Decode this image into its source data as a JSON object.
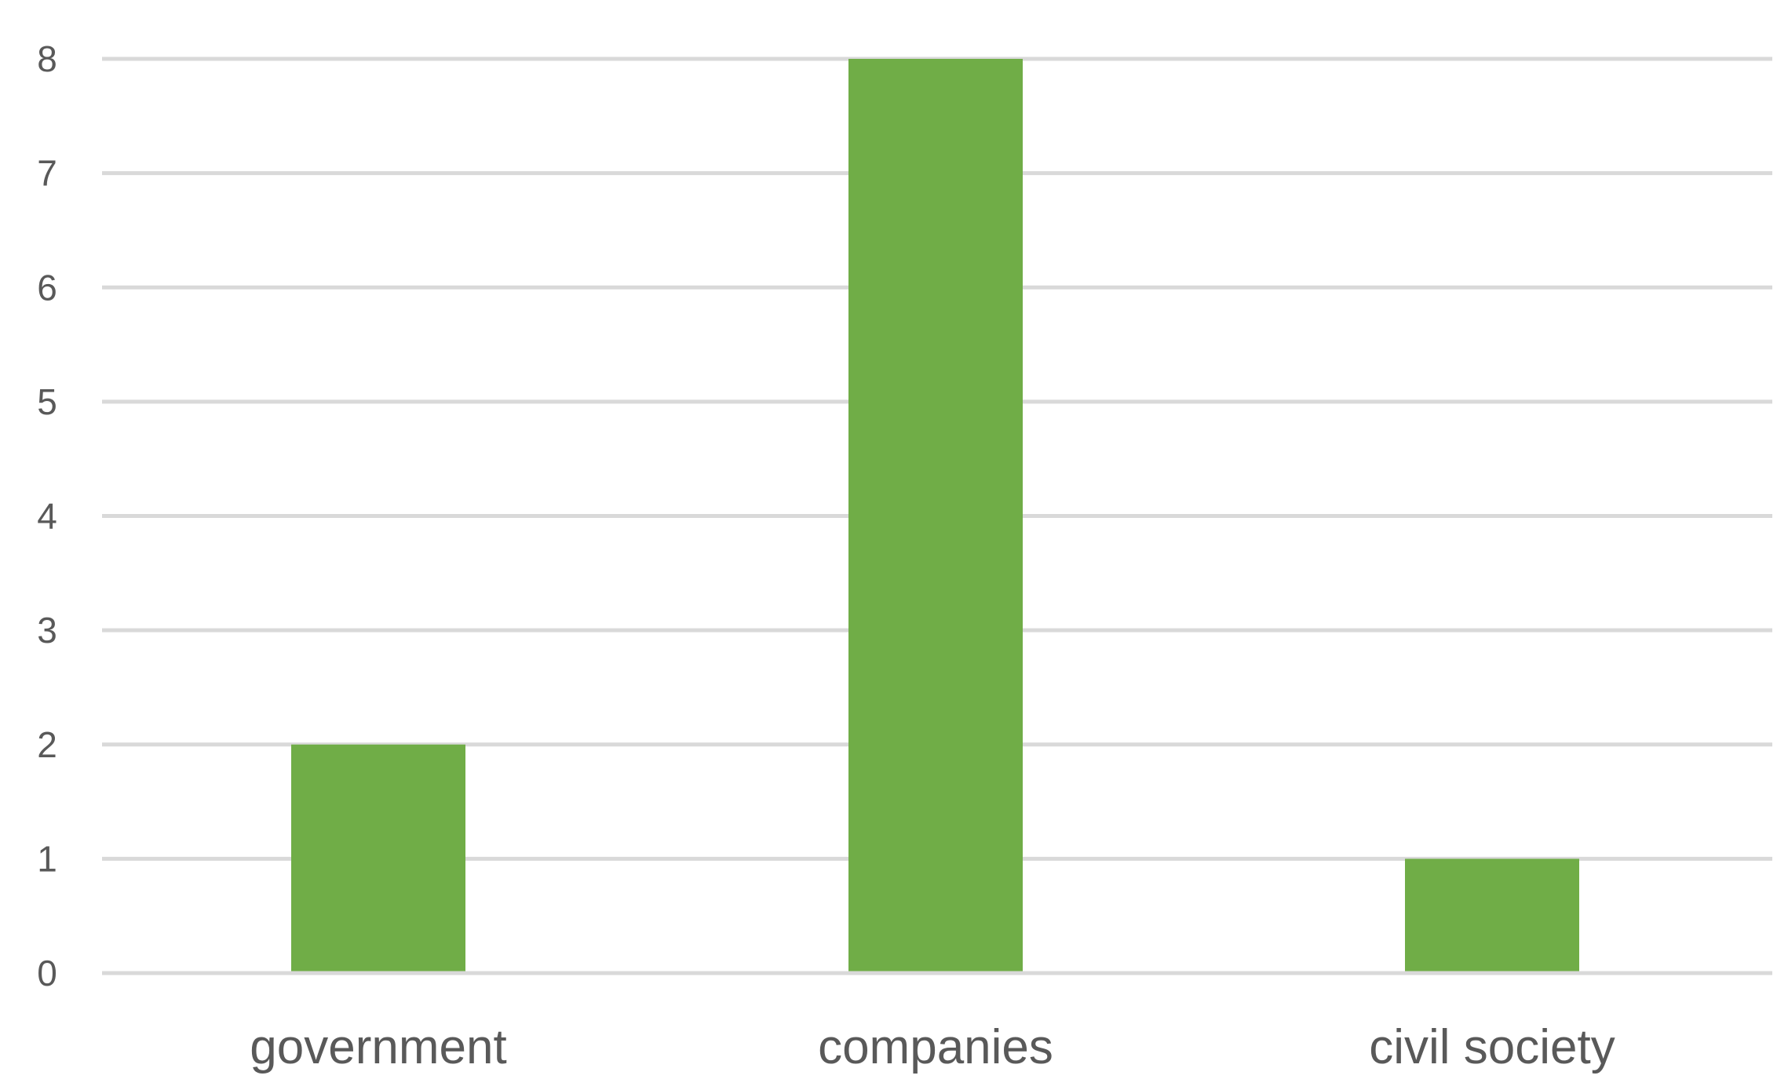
{
  "chart_data": {
    "type": "bar",
    "categories": [
      "government",
      "companies",
      "civil society"
    ],
    "values": [
      2,
      8,
      1
    ],
    "ylim": [
      0,
      8
    ],
    "yticks": [
      0,
      1,
      2,
      3,
      4,
      5,
      6,
      7,
      8
    ],
    "grid": true,
    "legend": "none",
    "colors": {
      "bar": "#70AD47",
      "grid": "#D9D9D9",
      "text": "#595959"
    }
  }
}
